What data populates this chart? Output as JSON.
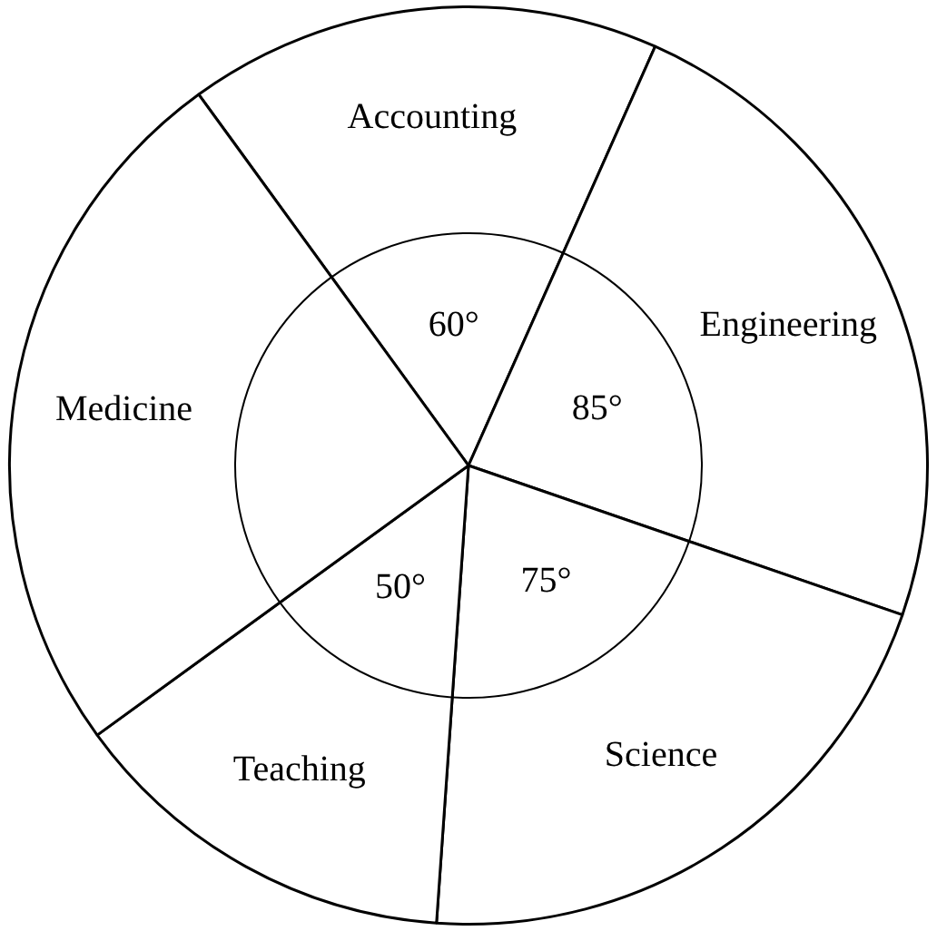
{
  "chart_data": {
    "type": "pie",
    "categories": [
      "Accounting",
      "Engineering",
      "Science",
      "Teaching",
      "Medicine"
    ],
    "values": [
      60,
      85,
      75,
      50,
      90
    ],
    "value_labels": [
      "60°",
      "85°",
      "75°",
      "50°",
      null
    ],
    "colors": [
      "#ffffff",
      "#ffffff",
      "#ffffff",
      "#ffffff",
      "#ffffff"
    ],
    "legend": false
  }
}
